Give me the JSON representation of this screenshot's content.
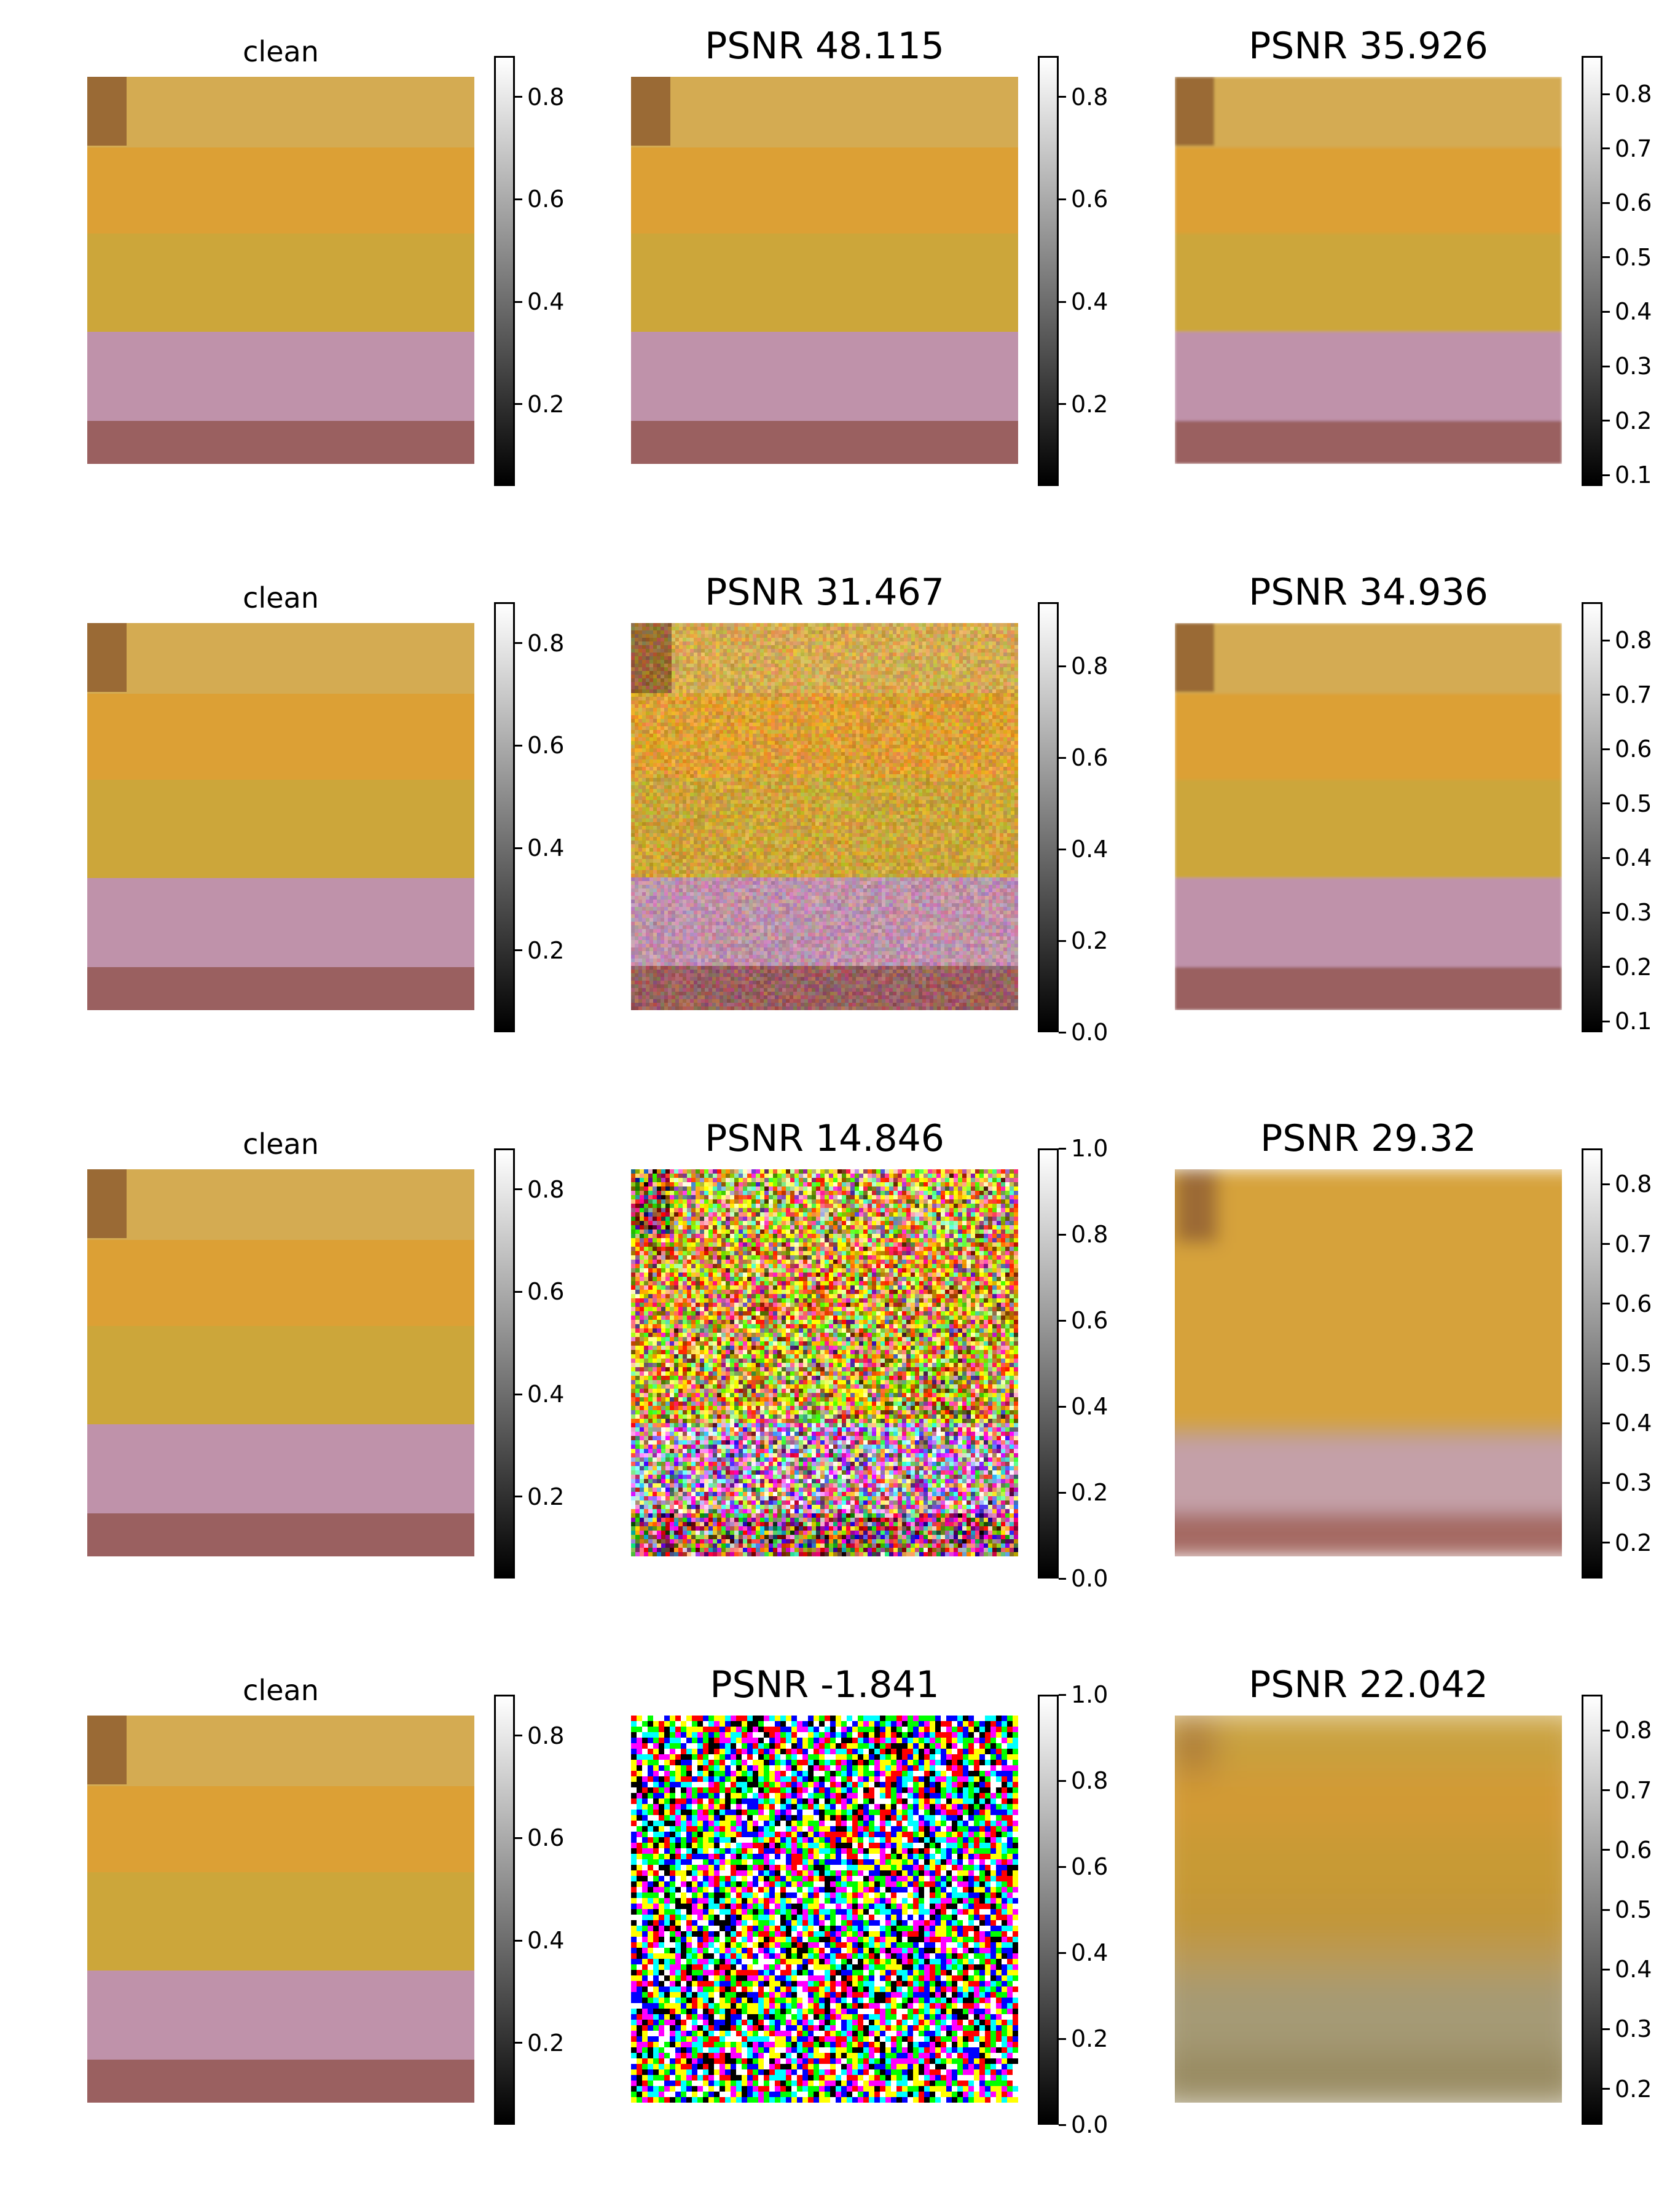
{
  "rows": [
    {
      "panels": [
        {
          "title": "clean",
          "kind": "clean",
          "ticks": [
            "0.2",
            "0.4",
            "0.6",
            "0.8"
          ],
          "range": [
            0.04,
            0.88
          ]
        },
        {
          "title": "PSNR 48.115",
          "kind": "clean",
          "ticks": [
            "0.2",
            "0.4",
            "0.6",
            "0.8"
          ],
          "range": [
            0.04,
            0.88
          ]
        },
        {
          "title": "PSNR 35.926",
          "kind": "smooth",
          "ticks": [
            "0.1",
            "0.2",
            "0.3",
            "0.4",
            "0.5",
            "0.6",
            "0.7",
            "0.8"
          ],
          "range": [
            0.08,
            0.87
          ]
        }
      ]
    },
    {
      "panels": [
        {
          "title": "clean",
          "kind": "clean",
          "ticks": [
            "0.2",
            "0.4",
            "0.6",
            "0.8"
          ],
          "range": [
            0.04,
            0.88
          ]
        },
        {
          "title": "PSNR 31.467",
          "kind": "lightnoise",
          "ticks": [
            "0.0",
            "0.2",
            "0.4",
            "0.6",
            "0.8"
          ],
          "range": [
            0.0,
            0.94
          ]
        },
        {
          "title": "PSNR 34.936",
          "kind": "smooth",
          "ticks": [
            "0.1",
            "0.2",
            "0.3",
            "0.4",
            "0.5",
            "0.6",
            "0.7",
            "0.8"
          ],
          "range": [
            0.08,
            0.87
          ]
        }
      ]
    },
    {
      "panels": [
        {
          "title": "clean",
          "kind": "clean",
          "ticks": [
            "0.2",
            "0.4",
            "0.6",
            "0.8"
          ],
          "range": [
            0.04,
            0.88
          ]
        },
        {
          "title": "PSNR 14.846",
          "kind": "heavynoise",
          "ticks": [
            "0.0",
            "0.2",
            "0.4",
            "0.6",
            "0.8",
            "1.0"
          ],
          "range": [
            0.0,
            1.0
          ]
        },
        {
          "title": "PSNR 29.32",
          "kind": "blurred",
          "ticks": [
            "0.2",
            "0.3",
            "0.4",
            "0.5",
            "0.6",
            "0.7",
            "0.8"
          ],
          "range": [
            0.14,
            0.86
          ]
        }
      ]
    },
    {
      "panels": [
        {
          "title": "clean",
          "kind": "clean",
          "ticks": [
            "0.2",
            "0.4",
            "0.6",
            "0.8"
          ],
          "range": [
            0.04,
            0.88
          ]
        },
        {
          "title": "PSNR -1.841",
          "kind": "randomnoise",
          "ticks": [
            "0.0",
            "0.2",
            "0.4",
            "0.6",
            "0.8",
            "1.0"
          ],
          "range": [
            0.0,
            1.0
          ]
        },
        {
          "title": "PSNR 22.042",
          "kind": "veryblurred",
          "ticks": [
            "0.2",
            "0.3",
            "0.4",
            "0.5",
            "0.6",
            "0.7",
            "0.8"
          ],
          "range": [
            0.14,
            0.86
          ]
        }
      ]
    }
  ],
  "colors": {
    "corner_brown": "#9a6a35",
    "stripe_top": "#d4ab52",
    "stripe_orange": "#dca035",
    "stripe_gold": "#cca63a",
    "stripe_mauve": "#bf92aa",
    "stripe_bottom": "#9a6060"
  }
}
